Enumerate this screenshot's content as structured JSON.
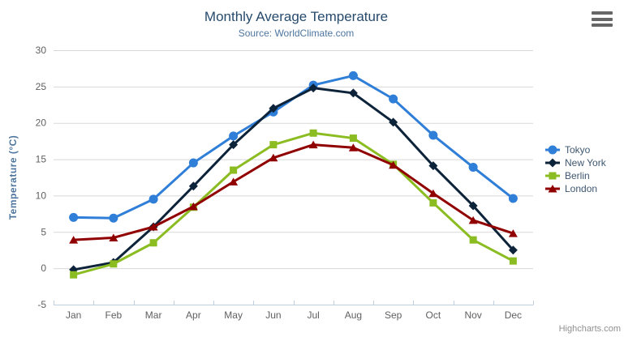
{
  "chart_data": {
    "type": "line",
    "title": "Monthly Average Temperature",
    "subtitle": "Source: WorldClimate.com",
    "xlabel": "",
    "ylabel": "Temperature (°C)",
    "categories": [
      "Jan",
      "Feb",
      "Mar",
      "Apr",
      "May",
      "Jun",
      "Jul",
      "Aug",
      "Sep",
      "Oct",
      "Nov",
      "Dec"
    ],
    "ylim": [
      -5,
      30
    ],
    "yticks": [
      -5,
      0,
      5,
      10,
      15,
      20,
      25,
      30
    ],
    "grid": true,
    "legend_position": "right",
    "series": [
      {
        "name": "Tokyo",
        "color": "#2f7ed8",
        "marker": "circle",
        "values": [
          7.0,
          6.9,
          9.5,
          14.5,
          18.2,
          21.5,
          25.2,
          26.5,
          23.3,
          18.3,
          13.9,
          9.6
        ]
      },
      {
        "name": "New York",
        "color": "#0d233a",
        "marker": "diamond",
        "values": [
          -0.2,
          0.8,
          5.7,
          11.3,
          17.0,
          22.0,
          24.8,
          24.1,
          20.1,
          14.1,
          8.6,
          2.5
        ]
      },
      {
        "name": "Berlin",
        "color": "#8bbc21",
        "marker": "square",
        "values": [
          -0.9,
          0.6,
          3.5,
          8.4,
          13.5,
          17.0,
          18.6,
          17.9,
          14.3,
          9.0,
          3.9,
          1.0
        ]
      },
      {
        "name": "London",
        "color": "#910000",
        "marker": "triangle",
        "values": [
          3.9,
          4.2,
          5.7,
          8.5,
          11.9,
          15.2,
          17.0,
          16.6,
          14.2,
          10.3,
          6.6,
          4.8
        ]
      }
    ]
  },
  "theme": {
    "title_color": "#274b6d",
    "subtitle_color": "#4d759e",
    "axis_title_color": "#4d759e",
    "axis_label_color": "#606060",
    "grid_color": "#D8D8D8",
    "axis_line_color": "#C0D0E0",
    "legend_text_color": "#3E576F",
    "credits_color": "#909090"
  },
  "export_menu": {
    "icon": "hamburger-icon"
  },
  "credits": {
    "label": "Highcharts.com"
  }
}
